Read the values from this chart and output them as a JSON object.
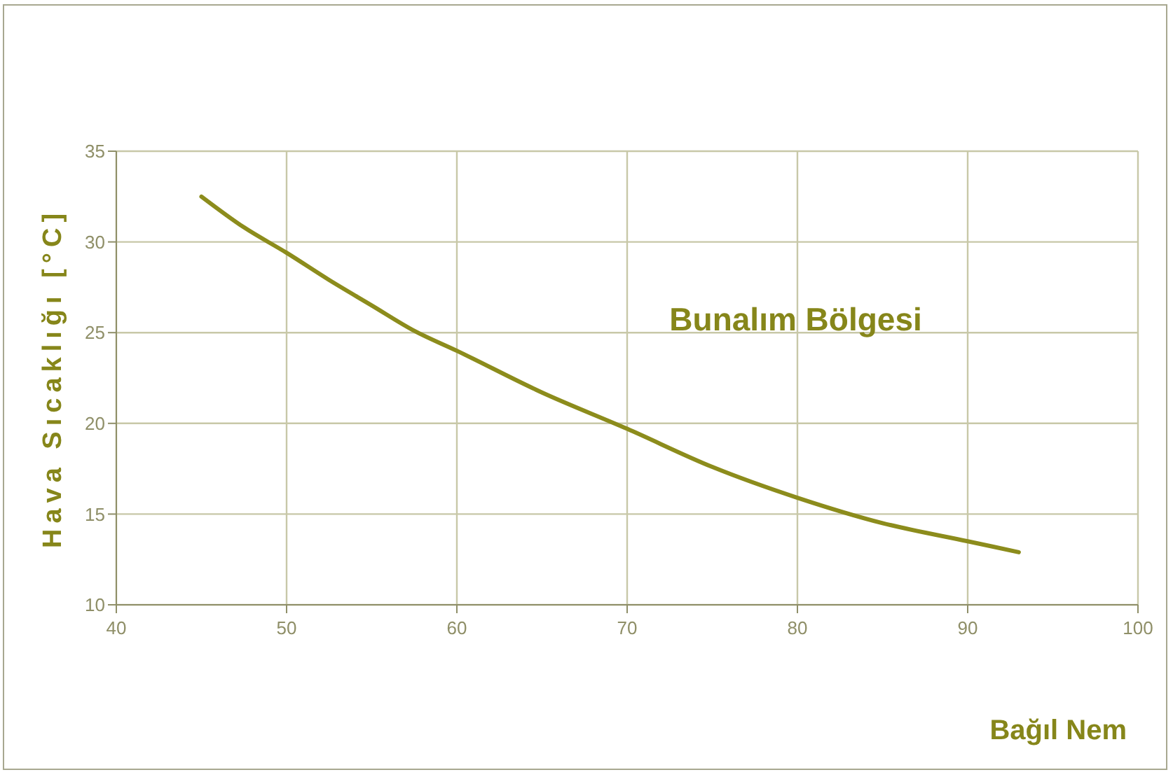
{
  "chart_data": {
    "type": "line",
    "xlabel": "Bağıl Nem",
    "ylabel": "Hava Sıcaklığı [°C]",
    "annotations": [
      "Bunalım Bölgesi"
    ],
    "x": [
      45,
      47.5,
      50,
      52.5,
      55,
      57.5,
      60,
      65,
      70,
      75,
      80,
      85,
      90,
      93
    ],
    "series": [
      {
        "color": "#8c8c1c",
        "values": [
          32.5,
          30.8,
          29.4,
          27.9,
          26.5,
          25.1,
          24.0,
          21.7,
          19.7,
          17.6,
          15.9,
          14.5,
          13.5,
          12.9
        ]
      }
    ],
    "xlim": [
      40,
      100
    ],
    "xticks": [
      40,
      50,
      60,
      70,
      80,
      90,
      100
    ],
    "ylim": [
      10,
      35
    ],
    "yticks": [
      10,
      15,
      20,
      25,
      30,
      35
    ],
    "grid": true,
    "marker": "none",
    "line_style": "solid"
  }
}
